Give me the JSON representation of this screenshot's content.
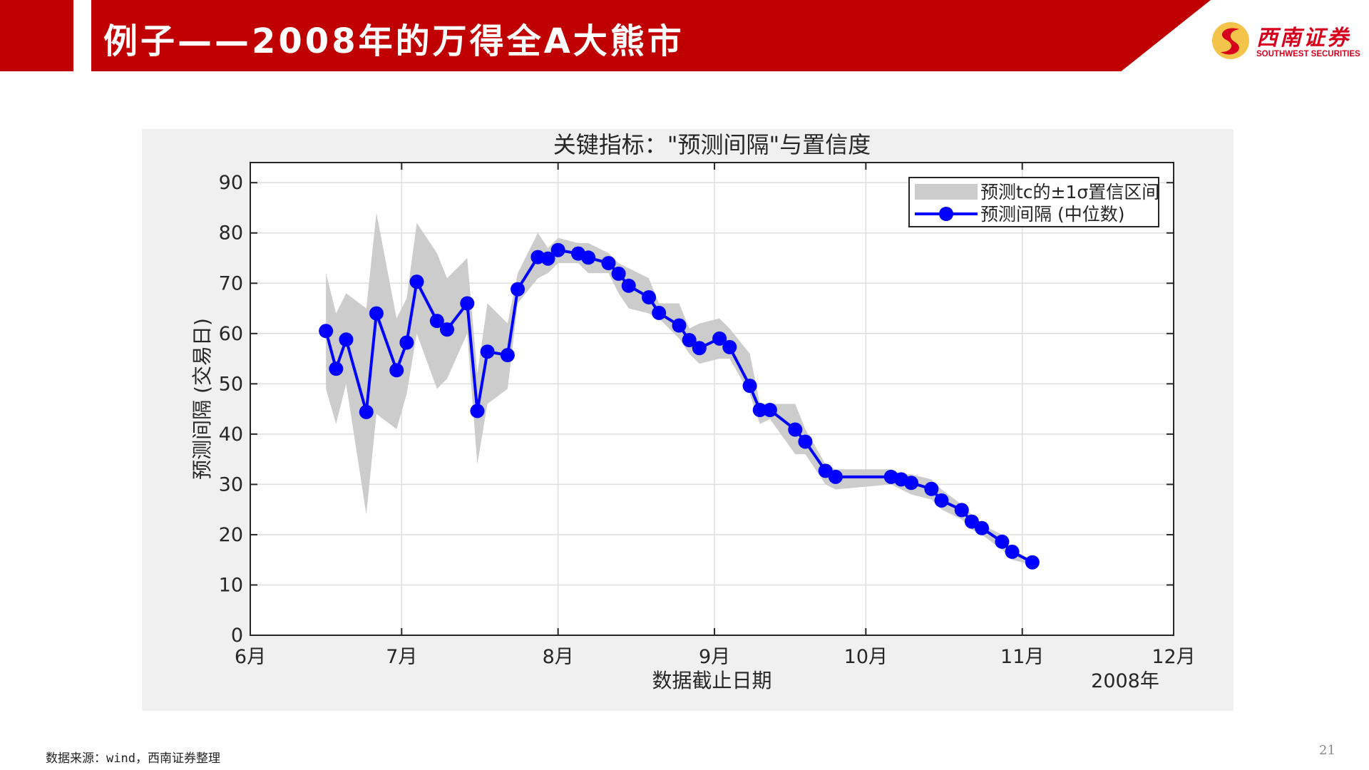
{
  "header": {
    "title": "例子——2008年的万得全A大熊市"
  },
  "logo": {
    "name_cn": "西南证券",
    "name_en": "SOUTHWEST SECURITIES"
  },
  "footer": {
    "source": "数据来源：wind，西南证券整理",
    "page_number": "21"
  },
  "colors": {
    "brand_red": "#c00000",
    "line": "#0000ff",
    "band": "#cccccc",
    "panel_bg": "#f0f0f0"
  },
  "chart_data": {
    "type": "line",
    "title": "关键指标：\"预测间隔\"与置信度",
    "xlabel": "数据截止日期",
    "ylabel": "预测间隔 (交易日)",
    "x_year_label": "2008年",
    "xlim": [
      "2008-06-01",
      "2008-12-01"
    ],
    "ylim": [
      0,
      94
    ],
    "x_ticks": [
      {
        "date": "2008-06-01",
        "label": "6月"
      },
      {
        "date": "2008-07-01",
        "label": "7月"
      },
      {
        "date": "2008-08-01",
        "label": "8月"
      },
      {
        "date": "2008-09-01",
        "label": "9月"
      },
      {
        "date": "2008-10-01",
        "label": "10月"
      },
      {
        "date": "2008-11-01",
        "label": "11月"
      },
      {
        "date": "2008-12-01",
        "label": "12月"
      }
    ],
    "y_ticks": [
      0,
      10,
      20,
      30,
      40,
      50,
      60,
      70,
      80,
      90
    ],
    "grid": true,
    "legend": {
      "placement": "top-right",
      "entries": [
        "预测tc的±1σ置信区间",
        "预测间隔 (中位数)"
      ]
    },
    "x": [
      "2008-06-16",
      "2008-06-18",
      "2008-06-20",
      "2008-06-24",
      "2008-06-26",
      "2008-06-30",
      "2008-07-02",
      "2008-07-04",
      "2008-07-08",
      "2008-07-10",
      "2008-07-14",
      "2008-07-16",
      "2008-07-18",
      "2008-07-22",
      "2008-07-24",
      "2008-07-28",
      "2008-07-30",
      "2008-08-01",
      "2008-08-05",
      "2008-08-07",
      "2008-08-11",
      "2008-08-13",
      "2008-08-15",
      "2008-08-19",
      "2008-08-21",
      "2008-08-25",
      "2008-08-27",
      "2008-08-29",
      "2008-09-02",
      "2008-09-04",
      "2008-09-08",
      "2008-09-10",
      "2008-09-12",
      "2008-09-17",
      "2008-09-19",
      "2008-09-23",
      "2008-09-25",
      "2008-10-06",
      "2008-10-08",
      "2008-10-10",
      "2008-10-14",
      "2008-10-16",
      "2008-10-20",
      "2008-10-22",
      "2008-10-24",
      "2008-10-28",
      "2008-10-30",
      "2008-11-03"
    ],
    "series": [
      {
        "name": "预测间隔 (中位数)",
        "values": [
          60.5,
          53,
          58.8,
          44.4,
          64,
          52.7,
          58.2,
          70.3,
          62.5,
          60.8,
          66,
          44.6,
          56.4,
          55.7,
          68.8,
          75.2,
          74.9,
          76.6,
          75.9,
          75.1,
          74,
          71.9,
          69.5,
          67.2,
          64.1,
          61.6,
          58.7,
          57.1,
          59,
          57.3,
          49.6,
          44.8,
          44.8,
          40.9,
          38.5,
          32.7,
          31.5,
          31.5,
          31,
          30.3,
          29.1,
          26.8,
          24.9,
          22.6,
          21.3,
          18.6,
          16.6,
          14.5
        ]
      },
      {
        "name": "预测tc的±1σ置信区间",
        "upper": [
          72,
          64,
          68,
          65,
          84,
          63,
          67,
          82,
          76,
          71,
          75,
          52,
          66,
          62,
          72,
          80,
          77,
          79,
          78,
          78,
          76,
          74,
          73,
          71,
          66,
          66,
          61,
          62,
          63,
          61,
          56,
          46,
          46,
          46,
          41,
          34,
          33,
          33,
          32,
          32,
          31,
          29,
          26,
          24,
          22,
          20,
          17,
          15
        ],
        "lower": [
          49,
          42,
          50,
          24,
          44,
          41,
          48,
          60,
          49,
          51,
          60,
          34,
          46,
          49,
          66,
          71,
          72,
          74,
          74,
          72,
          72,
          68,
          65,
          64,
          63,
          59,
          56,
          54,
          55,
          55,
          48,
          42,
          43,
          36,
          36,
          30,
          29,
          30,
          29,
          28,
          27,
          25,
          23,
          21,
          20,
          17,
          15,
          14
        ]
      }
    ]
  }
}
